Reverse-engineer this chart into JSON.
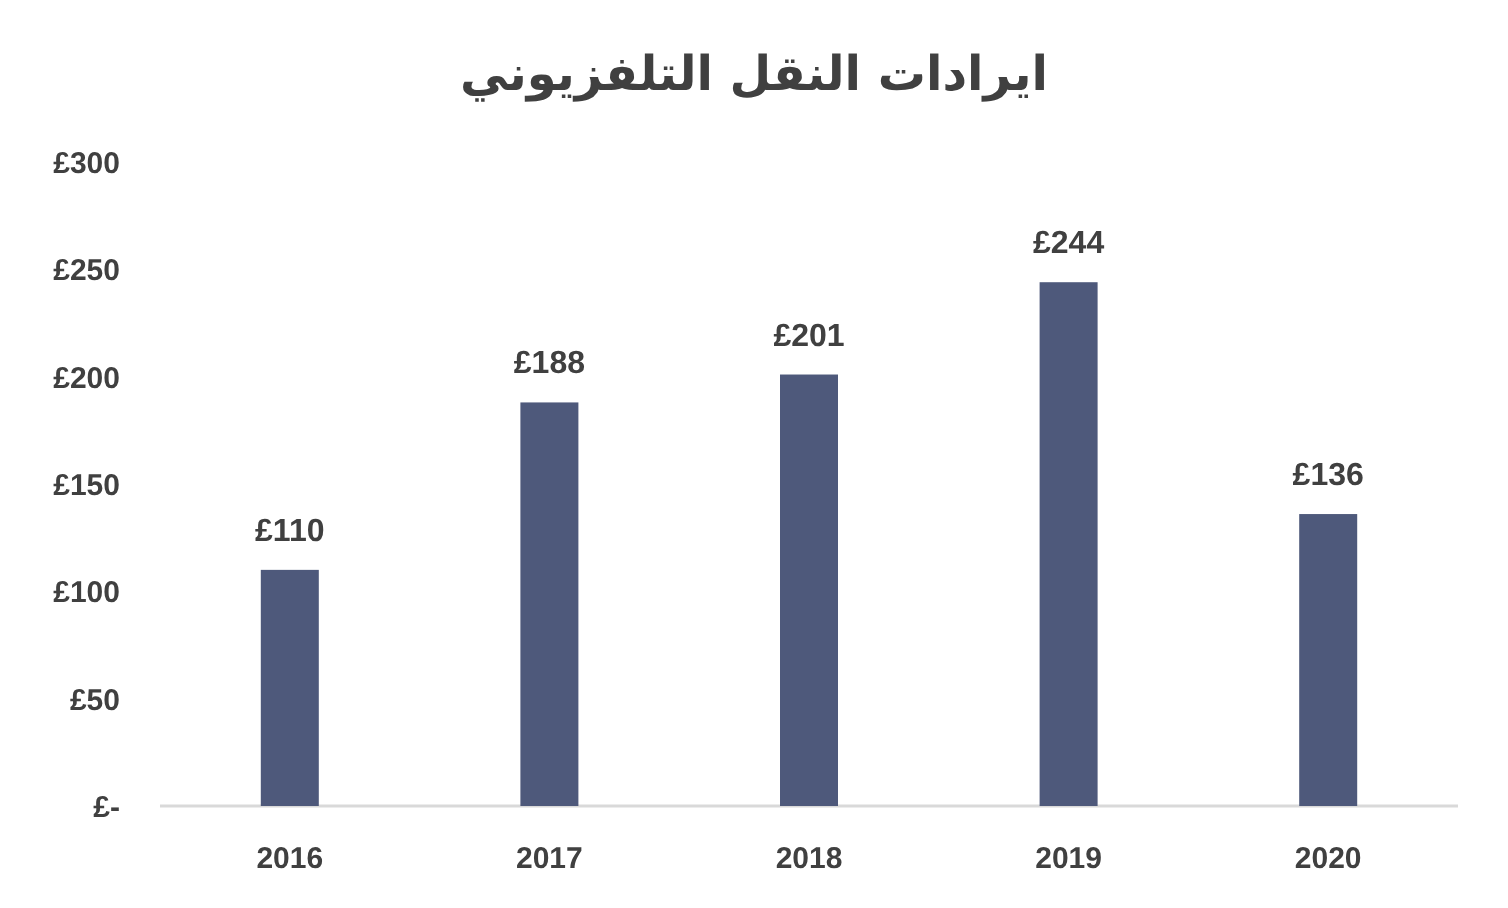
{
  "chart_data": {
    "type": "bar",
    "title": "ايرادات النقل التلفزيوني",
    "categories": [
      "2016",
      "2017",
      "2018",
      "2019",
      "2020"
    ],
    "values": [
      110,
      188,
      201,
      244,
      136
    ],
    "value_labels": [
      "£110",
      "£188",
      "£201",
      "£244",
      "£136"
    ],
    "color": "#4e597b",
    "ylim": [
      0,
      300
    ],
    "yticks": [
      {
        "value": 0,
        "label": "£-"
      },
      {
        "value": 50,
        "label": "£50"
      },
      {
        "value": 100,
        "label": "£100"
      },
      {
        "value": 150,
        "label": "£150"
      },
      {
        "value": 200,
        "label": "£200"
      },
      {
        "value": 250,
        "label": "£250"
      },
      {
        "value": 300,
        "label": "£300"
      }
    ]
  }
}
